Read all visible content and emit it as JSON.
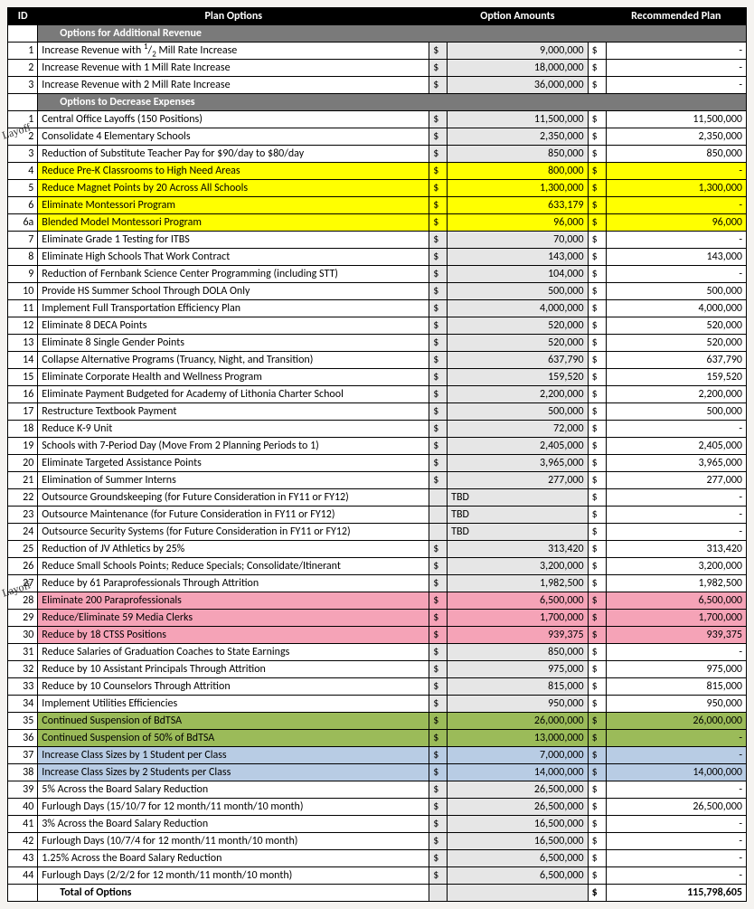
{
  "columns": {
    "id": "ID",
    "plan": "Plan Options",
    "option_amounts": "Option Amounts",
    "recommended_plan": "Recommended Plan"
  },
  "sections": {
    "revenue": "Options for Additional Revenue",
    "expenses": "Options to Decrease Expenses"
  },
  "annotations": {
    "a1": "Layoff",
    "a2": "Layoff"
  },
  "currency": "$",
  "total_label": "Total of Options",
  "total_value": "115,798,605",
  "colors": {
    "header_bg": "#000000",
    "header_fg": "#ffffff",
    "section_bg": "#7a7a7a",
    "amt_col_bg": "#e6e6e6",
    "hl_yellow": "#ffff00",
    "hl_pink": "#f5a3b7",
    "hl_green": "#9bbb59",
    "hl_blue": "#b8cce4",
    "border": "#000000",
    "page_bg": "#f5f3f0"
  },
  "font": {
    "family": "Calibri",
    "size_pt": 10
  },
  "revenue_rows": [
    {
      "id": "1",
      "desc_html": "Increase Revenue with <sup>1</sup>/<sub>2</sub> Mill Rate Increase",
      "amt": "9,000,000",
      "rec": "-"
    },
    {
      "id": "2",
      "desc": "Increase Revenue with 1 Mill Rate Increase",
      "amt": "18,000,000",
      "rec": "-"
    },
    {
      "id": "3",
      "desc": "Increase Revenue with 2 Mill Rate Increase",
      "amt": "36,000,000",
      "rec": "-"
    }
  ],
  "expense_rows": [
    {
      "id": "1",
      "desc": "Central Office Layoffs (150 Positions)",
      "amt": "11,500,000",
      "rec": "11,500,000"
    },
    {
      "id": "2",
      "desc": "Consolidate 4 Elementary Schools",
      "amt": "2,350,000",
      "rec": "2,350,000"
    },
    {
      "id": "3",
      "desc": "Reduction of Substitute Teacher Pay for $90/day to $80/day",
      "amt": "850,000",
      "rec": "850,000"
    },
    {
      "id": "4",
      "desc": "Reduce Pre-K Classrooms to High Need Areas",
      "amt": "800,000",
      "rec": "-",
      "hl": "yellow"
    },
    {
      "id": "5",
      "desc": "Reduce Magnet Points by 20 Across All Schools",
      "amt": "1,300,000",
      "rec": "1,300,000",
      "hl": "yellow"
    },
    {
      "id": "6",
      "desc": "Eliminate Montessori Program",
      "amt": "633,179",
      "rec": "-",
      "hl": "yellow"
    },
    {
      "id": "6a",
      "desc": "Blended Model Montessori Program",
      "amt": "96,000",
      "rec": "96,000",
      "hl": "yellow"
    },
    {
      "id": "7",
      "desc": "Eliminate Grade 1 Testing for ITBS",
      "amt": "70,000",
      "rec": "-"
    },
    {
      "id": "8",
      "desc": "Eliminate High Schools That Work Contract",
      "amt": "143,000",
      "rec": "143,000"
    },
    {
      "id": "9",
      "desc": "Reduction of Fernbank Science Center Programming (including STT)",
      "amt": "104,000",
      "rec": "-"
    },
    {
      "id": "10",
      "desc": "Provide HS Summer School Through DOLA Only",
      "amt": "500,000",
      "rec": "500,000"
    },
    {
      "id": "11",
      "desc": "Implement Full Transportation Efficiency Plan",
      "amt": "4,000,000",
      "rec": "4,000,000"
    },
    {
      "id": "12",
      "desc": "Eliminate 8 DECA Points",
      "amt": "520,000",
      "rec": "520,000"
    },
    {
      "id": "13",
      "desc": "Eliminate 8 Single Gender Points",
      "amt": "520,000",
      "rec": "520,000"
    },
    {
      "id": "14",
      "desc": "Collapse Alternative Programs (Truancy, Night, and Transition)",
      "amt": "637,790",
      "rec": "637,790"
    },
    {
      "id": "15",
      "desc": "Eliminate Corporate Health and Wellness Program",
      "amt": "159,520",
      "rec": "159,520"
    },
    {
      "id": "16",
      "desc": "Eliminate Payment Budgeted for Academy of Lithonia Charter School",
      "amt": "2,200,000",
      "rec": "2,200,000"
    },
    {
      "id": "17",
      "desc": "Restructure Textbook Payment",
      "amt": "500,000",
      "rec": "500,000"
    },
    {
      "id": "18",
      "desc": "Reduce K-9 Unit",
      "amt": "72,000",
      "rec": "-"
    },
    {
      "id": "19",
      "desc": "Schools with 7-Period Day (Move From 2 Planning Periods to 1)",
      "amt": "2,405,000",
      "rec": "2,405,000"
    },
    {
      "id": "20",
      "desc": "Eliminate Targeted Assistance Points",
      "amt": "3,965,000",
      "rec": "3,965,000"
    },
    {
      "id": "21",
      "desc": "Elimination of Summer Interns",
      "amt": "277,000",
      "rec": "277,000"
    },
    {
      "id": "22",
      "desc": "Outsource Groundskeeping (for Future Consideration in FY11 or FY12)",
      "amt_text": "TBD",
      "rec": "-"
    },
    {
      "id": "23",
      "desc": "Outsource Maintenance (for Future Consideration in FY11 or FY12)",
      "amt_text": "TBD",
      "rec": "-"
    },
    {
      "id": "24",
      "desc": "Outsource Security Systems (for Future Consideration in FY11 or FY12)",
      "amt_text": "TBD",
      "rec": "-"
    },
    {
      "id": "25",
      "desc": "Reduction of JV Athletics by 25%",
      "amt": "313,420",
      "rec": "313,420"
    },
    {
      "id": "26",
      "desc": "Reduce Small Schools Points; Reduce Specials; Consolidate/Itinerant",
      "amt": "3,200,000",
      "rec": "3,200,000"
    },
    {
      "id": "27",
      "desc": "Reduce by 61 Paraprofessionals Through Attrition",
      "amt": "1,982,500",
      "rec": "1,982,500"
    },
    {
      "id": "28",
      "desc": "Eliminate 200 Paraprofessionals",
      "amt": "6,500,000",
      "rec": "6,500,000",
      "hl": "pink"
    },
    {
      "id": "29",
      "desc": "Reduce/Eliminate 59 Media Clerks",
      "amt": "1,700,000",
      "rec": "1,700,000",
      "hl": "pink"
    },
    {
      "id": "30",
      "desc": "Reduce by 18 CTSS Positions",
      "amt": "939,375",
      "rec": "939,375",
      "hl": "pink"
    },
    {
      "id": "31",
      "desc": "Reduce Salaries of Graduation Coaches to State Earnings",
      "amt": "850,000",
      "rec": "-"
    },
    {
      "id": "32",
      "desc": "Reduce by 10 Assistant Principals Through Attrition",
      "amt": "975,000",
      "rec": "975,000"
    },
    {
      "id": "33",
      "desc": "Reduce by 10 Counselors Through Attrition",
      "amt": "815,000",
      "rec": "815,000"
    },
    {
      "id": "34",
      "desc": "Implement Utilities Efficiencies",
      "amt": "950,000",
      "rec": "950,000"
    },
    {
      "id": "35",
      "desc": "Continued Suspension of BdTSA",
      "amt": "26,000,000",
      "rec": "26,000,000",
      "hl": "green"
    },
    {
      "id": "36",
      "desc": "Continued Suspension of 50% of BdTSA",
      "amt": "13,000,000",
      "rec": "-",
      "hl": "green"
    },
    {
      "id": "37",
      "desc": "Increase Class Sizes by 1 Student per Class",
      "amt": "7,000,000",
      "rec": "-",
      "hl": "blue"
    },
    {
      "id": "38",
      "desc": "Increase Class Sizes by 2 Students per Class",
      "amt": "14,000,000",
      "rec": "14,000,000",
      "hl": "blue"
    },
    {
      "id": "39",
      "desc": "5% Across the Board Salary Reduction",
      "amt": "26,500,000",
      "rec": "-"
    },
    {
      "id": "40",
      "desc": "Furlough Days (15/10/7 for 12 month/11 month/10 month)",
      "amt": "26,500,000",
      "rec": "26,500,000"
    },
    {
      "id": "41",
      "desc": "3% Across the Board Salary Reduction",
      "amt": "16,500,000",
      "rec": "-"
    },
    {
      "id": "42",
      "desc": "Furlough Days (10/7/4 for 12 month/11 month/10 month)",
      "amt": "16,500,000",
      "rec": "-"
    },
    {
      "id": "43",
      "desc": "1.25% Across the Board Salary Reduction",
      "amt": "6,500,000",
      "rec": "-"
    },
    {
      "id": "44",
      "desc": "Furlough Days (2/2/2 for 12 month/11 month/10 month)",
      "amt": "6,500,000",
      "rec": "-"
    }
  ]
}
